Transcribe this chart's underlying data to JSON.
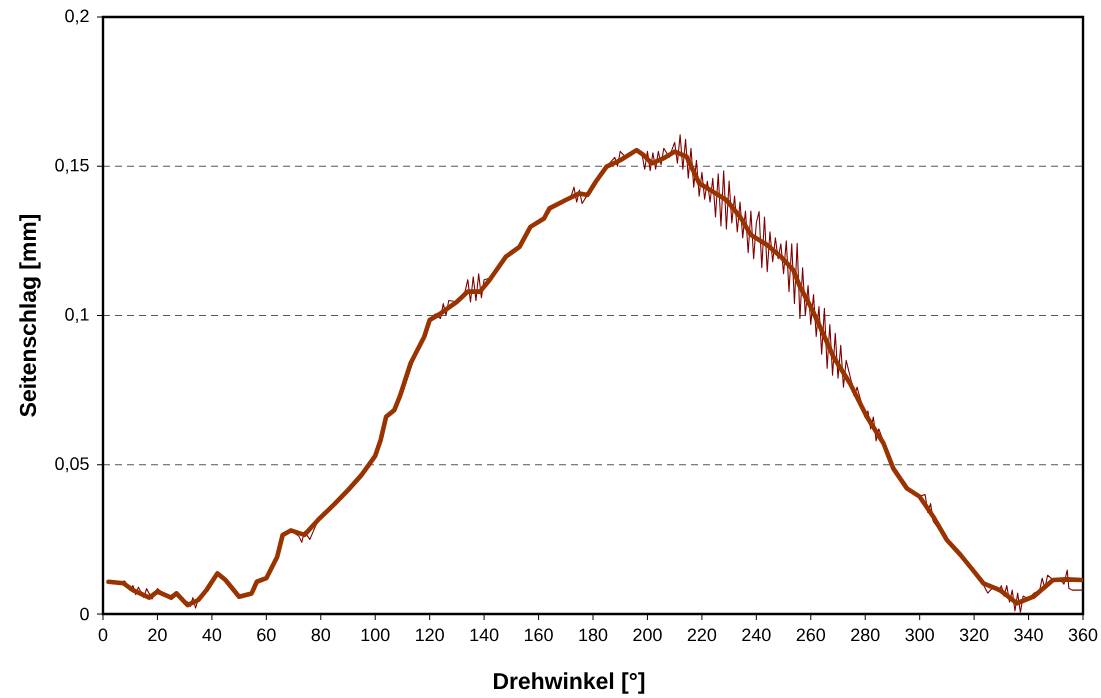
{
  "chart_data": {
    "type": "line",
    "xlabel": "Drehwinkel [°]",
    "ylabel": "Seitenschlag [mm]",
    "xlim": [
      0,
      360
    ],
    "ylim": [
      0,
      0.2
    ],
    "xticks": [
      0,
      20,
      40,
      60,
      80,
      100,
      120,
      140,
      160,
      180,
      200,
      220,
      240,
      260,
      280,
      300,
      320,
      340,
      360
    ],
    "yticks": [
      0,
      {
        "value": 0.05,
        "label": "0,05"
      },
      {
        "value": 0.1,
        "label": "0,1"
      },
      {
        "value": 0.15,
        "label": "0,15"
      },
      {
        "value": 0.2,
        "label": "0,2"
      }
    ],
    "grid": "y",
    "line_style": "solid",
    "series": [
      {
        "color": "#800000",
        "x": [
          2,
          5,
          8,
          10,
          11,
          12,
          13,
          15,
          16,
          18,
          20,
          22,
          25,
          27,
          29,
          31,
          32,
          33,
          34,
          35,
          37,
          40,
          42,
          45,
          50,
          55,
          57,
          60,
          64,
          66,
          69,
          72,
          73,
          74,
          76,
          79,
          85,
          90,
          95,
          100,
          104,
          107,
          110,
          114,
          118,
          120,
          122,
          124,
          125,
          126,
          127,
          130,
          133,
          134,
          135,
          136,
          137,
          138,
          139,
          140,
          142,
          145,
          148,
          153,
          157,
          162,
          165,
          170,
          172,
          173,
          174,
          175,
          176,
          178,
          181,
          185,
          188,
          189,
          190,
          192,
          196,
          198,
          199,
          200,
          201,
          202,
          203,
          204,
          205,
          206,
          208,
          210,
          211,
          212,
          213,
          214,
          215,
          216,
          217,
          218,
          219,
          220,
          221,
          222,
          223,
          224,
          225,
          226,
          227,
          228,
          229,
          230,
          231,
          232,
          233,
          234,
          235,
          236,
          237,
          238,
          239,
          240,
          241,
          242,
          243,
          244,
          245,
          246,
          247,
          248,
          249,
          250,
          251,
          252,
          253,
          254,
          255,
          256,
          257,
          258,
          259,
          260,
          261,
          262,
          263,
          264,
          265,
          266,
          267,
          268,
          269,
          270,
          271,
          272,
          273,
          275,
          276,
          277,
          280,
          281,
          282,
          283,
          284,
          285,
          287,
          290,
          295,
          300,
          302,
          303,
          304,
          305,
          310,
          315,
          320,
          323,
          325,
          327,
          329,
          330,
          331,
          332,
          333,
          334,
          335,
          336,
          337,
          338,
          340,
          342,
          344,
          345,
          346,
          347,
          349,
          352,
          353,
          354.2,
          354.8,
          356,
          360
        ],
        "values": [
          0.011,
          0.0105,
          0.011,
          0.008,
          0.0095,
          0.0065,
          0.009,
          0.0055,
          0.0085,
          0.005,
          0.0085,
          0.007,
          0.006,
          0.0075,
          0.005,
          0.004,
          0.0025,
          0.0055,
          0.002,
          0.005,
          0.0075,
          0.011,
          0.014,
          0.011,
          0.006,
          0.007,
          0.011,
          0.012,
          0.019,
          0.0265,
          0.028,
          0.026,
          0.024,
          0.0275,
          0.025,
          0.0315,
          0.0368,
          0.0415,
          0.0466,
          0.053,
          0.0661,
          0.0683,
          0.074,
          0.085,
          0.0929,
          0.0985,
          0.1005,
          0.099,
          0.104,
          0.1,
          0.105,
          0.1046,
          0.108,
          0.112,
          0.1045,
          0.113,
          0.105,
          0.114,
          0.106,
          0.112,
          0.1125,
          0.116,
          0.12,
          0.123,
          0.1297,
          0.1325,
          0.136,
          0.1387,
          0.14,
          0.143,
          0.138,
          0.142,
          0.1375,
          0.1405,
          0.1448,
          0.1499,
          0.153,
          0.15,
          0.155,
          0.153,
          0.1555,
          0.154,
          0.149,
          0.155,
          0.1485,
          0.1545,
          0.149,
          0.155,
          0.1505,
          0.156,
          0.153,
          0.158,
          0.151,
          0.1605,
          0.149,
          0.159,
          0.146,
          0.156,
          0.143,
          0.152,
          0.14,
          0.148,
          0.139,
          0.145,
          0.138,
          0.146,
          0.133,
          0.1475,
          0.13,
          0.1485,
          0.129,
          0.145,
          0.131,
          0.14,
          0.128,
          0.138,
          0.126,
          0.135,
          0.121,
          0.135,
          0.119,
          0.131,
          0.1348,
          0.116,
          0.133,
          0.1147,
          0.128,
          0.118,
          0.126,
          0.119,
          0.124,
          0.114,
          0.125,
          0.108,
          0.124,
          0.104,
          0.1242,
          0.099,
          0.116,
          0.1,
          0.11,
          0.097,
          0.107,
          0.093,
          0.103,
          0.087,
          0.1024,
          0.0823,
          0.097,
          0.08,
          0.094,
          0.079,
          0.09,
          0.076,
          0.085,
          0.0775,
          0.073,
          0.076,
          0.066,
          0.068,
          0.062,
          0.066,
          0.058,
          0.062,
          0.057,
          0.049,
          0.042,
          0.0395,
          0.04,
          0.034,
          0.037,
          0.031,
          0.025,
          0.02,
          0.014,
          0.0105,
          0.007,
          0.009,
          0.0075,
          0.0095,
          0.006,
          0.0095,
          0.004,
          0.008,
          0.001,
          0.007,
          0.0005,
          0.006,
          0.005,
          0.007,
          0.0075,
          0.012,
          0.0085,
          0.013,
          0.0114,
          0.0112,
          0.01,
          0.0147,
          0.0086,
          0.008,
          0.008
        ]
      },
      {
        "color": "#993300",
        "x": [
          2,
          7.5,
          11,
          17,
          20,
          25,
          27,
          31,
          35,
          38,
          42,
          45,
          50,
          54.6,
          56.5,
          60,
          64,
          66,
          69,
          74,
          79,
          85,
          90,
          95,
          100,
          102,
          104,
          107,
          109,
          113,
          118,
          120,
          124,
          130,
          134,
          138.5,
          142,
          148,
          153,
          157,
          162,
          164,
          170,
          175,
          178,
          181,
          185,
          190,
          196,
          198.5,
          201.6,
          206,
          210,
          214.4,
          219,
          224,
          229,
          234,
          238,
          244,
          249,
          253.6,
          256,
          260,
          263.4,
          268.3,
          274.4,
          280.6,
          286.7,
          290.3,
          295.3,
          300,
          305,
          310,
          315,
          320,
          323.4,
          329.5,
          335.7,
          341.8,
          349,
          354,
          359.5
        ],
        "values": [
          0.0108,
          0.0103,
          0.008,
          0.0055,
          0.0075,
          0.0055,
          0.0069,
          0.003,
          0.0047,
          0.008,
          0.0136,
          0.0114,
          0.0058,
          0.0069,
          0.0108,
          0.012,
          0.0192,
          0.0265,
          0.028,
          0.0265,
          0.0315,
          0.0368,
          0.0415,
          0.0466,
          0.053,
          0.0583,
          0.0661,
          0.0683,
          0.0728,
          0.084,
          0.0929,
          0.0985,
          0.1007,
          0.1046,
          0.108,
          0.108,
          0.1119,
          0.1197,
          0.123,
          0.1297,
          0.1325,
          0.1359,
          0.1387,
          0.1409,
          0.1404,
          0.1448,
          0.1499,
          0.152,
          0.1554,
          0.1538,
          0.151,
          0.1527,
          0.1549,
          0.1532,
          0.1443,
          0.1415,
          0.1387,
          0.1331,
          0.127,
          0.1236,
          0.1197,
          0.1152,
          0.1097,
          0.1029,
          0.0962,
          0.0862,
          0.0773,
          0.0661,
          0.0572,
          0.0488,
          0.0421,
          0.0393,
          0.0326,
          0.0248,
          0.0198,
          0.0142,
          0.0103,
          0.008,
          0.0036,
          0.0058,
          0.0114,
          0.0116,
          0.0114
        ]
      }
    ]
  }
}
